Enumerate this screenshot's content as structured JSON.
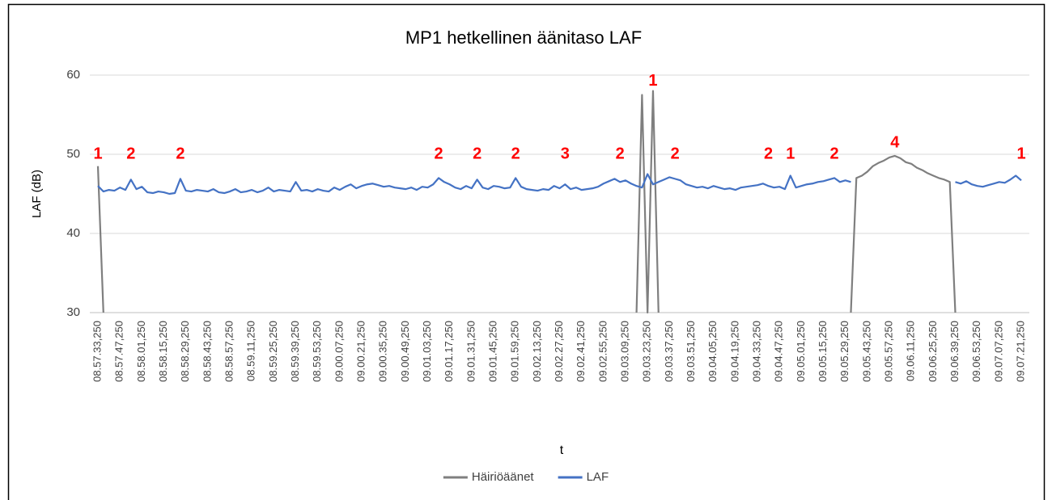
{
  "chart_data": {
    "type": "line",
    "title": "MP1 hetkellinen äänitaso LAF",
    "x_label": "t",
    "y_label": "LAF (dB)",
    "categories": [
      "08.57.33,250",
      null,
      null,
      null,
      "08.57.47,250",
      null,
      null,
      null,
      "08.58.01,250",
      null,
      null,
      null,
      "08.58.15,250",
      null,
      null,
      null,
      "08.58.29,250",
      null,
      null,
      null,
      "08.58.43,250",
      null,
      null,
      null,
      "08.58.57,250",
      null,
      null,
      null,
      "08.59.11,250",
      null,
      null,
      null,
      "08.59.25,250",
      null,
      null,
      null,
      "08.59.39,250",
      null,
      null,
      null,
      "08.59.53,250",
      null,
      null,
      null,
      "09.00.07,250",
      null,
      null,
      null,
      "09.00.21,250",
      null,
      null,
      null,
      "09.00.35,250",
      null,
      null,
      null,
      "09.00.49,250",
      null,
      null,
      null,
      "09.01.03,250",
      null,
      null,
      null,
      "09.01.17,250",
      null,
      null,
      null,
      "09.01.31,250",
      null,
      null,
      null,
      "09.01.45,250",
      null,
      null,
      null,
      "09.01.59,250",
      null,
      null,
      null,
      "09.02.13,250",
      null,
      null,
      null,
      "09.02.27,250",
      null,
      null,
      null,
      "09.02.41,250",
      null,
      null,
      null,
      "09.02.55,250",
      null,
      null,
      null,
      "09.03.09,250",
      null,
      null,
      null,
      "09.03.23,250",
      null,
      null,
      null,
      "09.03.37,250",
      null,
      null,
      null,
      "09.03.51,250",
      null,
      null,
      null,
      "09.04.05,250",
      null,
      null,
      null,
      "09.04.19,250",
      null,
      null,
      null,
      "09.04.33,250",
      null,
      null,
      null,
      "09.04.47,250",
      null,
      null,
      null,
      "09.05.01,250",
      null,
      null,
      null,
      "09.05.15,250",
      null,
      null,
      null,
      "09.05.29,250",
      null,
      null,
      null,
      "09.05.43,250",
      null,
      null,
      null,
      "09.05.57,250",
      null,
      null,
      null,
      "09.06.11,250",
      null,
      null,
      null,
      "09.06.25,250",
      null,
      null,
      null,
      "09.06.39,250",
      null,
      null,
      null,
      "09.06.53,250",
      null,
      null,
      null,
      "09.07.07,250",
      null,
      null,
      null,
      "09.07.21,250"
    ],
    "series": [
      {
        "name": "Häiriöäänet",
        "color": "#7f7f7f",
        "values": [
          48.5,
          30,
          null,
          null,
          null,
          null,
          null,
          null,
          null,
          null,
          null,
          null,
          null,
          null,
          null,
          null,
          null,
          null,
          null,
          null,
          null,
          null,
          null,
          null,
          null,
          null,
          null,
          null,
          null,
          null,
          null,
          null,
          null,
          null,
          null,
          null,
          null,
          null,
          null,
          null,
          null,
          null,
          null,
          null,
          null,
          null,
          null,
          null,
          null,
          null,
          null,
          null,
          null,
          null,
          null,
          null,
          null,
          null,
          null,
          null,
          null,
          null,
          null,
          null,
          null,
          null,
          null,
          null,
          null,
          null,
          null,
          null,
          null,
          null,
          null,
          null,
          null,
          null,
          null,
          null,
          null,
          null,
          null,
          null,
          null,
          null,
          null,
          null,
          null,
          null,
          null,
          null,
          null,
          null,
          null,
          null,
          null,
          null,
          30,
          57.5,
          30,
          58,
          30,
          null,
          null,
          null,
          null,
          null,
          null,
          null,
          null,
          null,
          null,
          null,
          null,
          null,
          null,
          null,
          null,
          null,
          null,
          null,
          null,
          null,
          null,
          null,
          null,
          null,
          null,
          null,
          null,
          null,
          null,
          null,
          null,
          null,
          null,
          30,
          47,
          47.3,
          47.8,
          48.5,
          48.9,
          49.2,
          49.6,
          49.8,
          49.5,
          49,
          48.8,
          48.3,
          48,
          47.6,
          47.3,
          47,
          46.8,
          46.5,
          30,
          null,
          null,
          null,
          null,
          null,
          null,
          null,
          null,
          null,
          null,
          null,
          null
        ]
      },
      {
        "name": "LAF",
        "color": "#4472c4",
        "values": [
          46,
          45.3,
          45.5,
          45.4,
          45.8,
          45.5,
          46.8,
          45.6,
          45.9,
          45.2,
          45.1,
          45.3,
          45.2,
          45,
          45.1,
          46.9,
          45.4,
          45.3,
          45.5,
          45.4,
          45.3,
          45.6,
          45.2,
          45.1,
          45.3,
          45.6,
          45.2,
          45.3,
          45.5,
          45.2,
          45.4,
          45.8,
          45.3,
          45.5,
          45.4,
          45.3,
          46.5,
          45.4,
          45.5,
          45.3,
          45.6,
          45.4,
          45.3,
          45.8,
          45.5,
          45.9,
          46.2,
          45.7,
          46,
          46.2,
          46.3,
          46.1,
          45.9,
          46,
          45.8,
          45.7,
          45.6,
          45.8,
          45.5,
          45.9,
          45.8,
          46.2,
          47,
          46.5,
          46.2,
          45.8,
          45.6,
          46,
          45.7,
          46.8,
          45.8,
          45.6,
          46,
          45.9,
          45.7,
          45.8,
          47,
          45.9,
          45.6,
          45.5,
          45.4,
          45.6,
          45.5,
          46,
          45.7,
          46.2,
          45.6,
          45.8,
          45.5,
          45.6,
          45.7,
          45.9,
          46.3,
          46.6,
          46.9,
          46.5,
          46.7,
          46.3,
          46,
          45.8,
          47.5,
          46.2,
          46.5,
          46.8,
          47.1,
          46.9,
          46.7,
          46.2,
          46,
          45.8,
          45.9,
          45.7,
          46,
          45.8,
          45.6,
          45.7,
          45.5,
          45.8,
          45.9,
          46,
          46.1,
          46.3,
          46,
          45.8,
          45.9,
          45.6,
          47.3,
          45.8,
          46,
          46.2,
          46.3,
          46.5,
          46.6,
          46.8,
          47,
          46.5,
          46.7,
          46.5,
          null,
          null,
          null,
          null,
          null,
          null,
          null,
          null,
          null,
          null,
          null,
          null,
          null,
          null,
          null,
          null,
          null,
          null,
          46.5,
          46.3,
          46.6,
          46.2,
          46,
          45.9,
          46.1,
          46.3,
          46.5,
          46.4,
          46.8,
          47.3,
          46.7
        ]
      }
    ],
    "ylim": [
      30,
      60
    ],
    "yticks": [
      30,
      40,
      50,
      60
    ],
    "grid": true,
    "legend": "bottom",
    "annotation_color": "#ff0000",
    "annotations": [
      {
        "text": "1",
        "x": 0,
        "y": 50
      },
      {
        "text": "2",
        "x": 6,
        "y": 50
      },
      {
        "text": "2",
        "x": 15,
        "y": 50
      },
      {
        "text": "2",
        "x": 62,
        "y": 50
      },
      {
        "text": "2",
        "x": 69,
        "y": 50
      },
      {
        "text": "2",
        "x": 76,
        "y": 50
      },
      {
        "text": "3",
        "x": 85,
        "y": 50
      },
      {
        "text": "2",
        "x": 95,
        "y": 50
      },
      {
        "text": "1",
        "x": 101,
        "y": 59.2
      },
      {
        "text": "2",
        "x": 105,
        "y": 50
      },
      {
        "text": "2",
        "x": 122,
        "y": 50
      },
      {
        "text": "1",
        "x": 126,
        "y": 50
      },
      {
        "text": "2",
        "x": 134,
        "y": 50
      },
      {
        "text": "4",
        "x": 145,
        "y": 51.4
      },
      {
        "text": "1",
        "x": 168,
        "y": 50
      }
    ]
  }
}
